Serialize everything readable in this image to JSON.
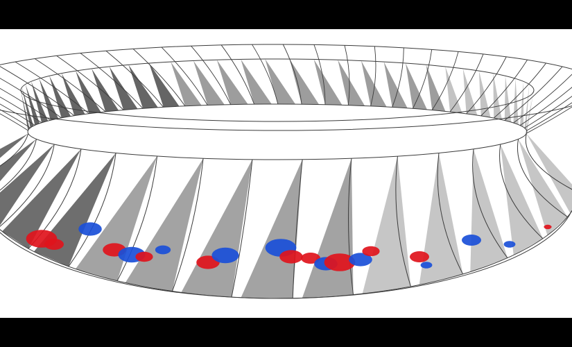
{
  "scene": {
    "subject": "turbomachinery-blade-row-vortex-isosurfaces",
    "colors": {
      "letterbox": "#000000",
      "background": "#ffffff",
      "wireframe": "#3a3a3a",
      "blade_dark": "#4a4a4a",
      "blade_mid": "#8c8c8c",
      "blade_light": "#b8b8b8",
      "vortex_positive": "#e0141c",
      "vortex_negative": "#1a4fd8"
    },
    "icons": {
      "positive_isosurface": "red-blob",
      "negative_isosurface": "blue-blob"
    }
  }
}
